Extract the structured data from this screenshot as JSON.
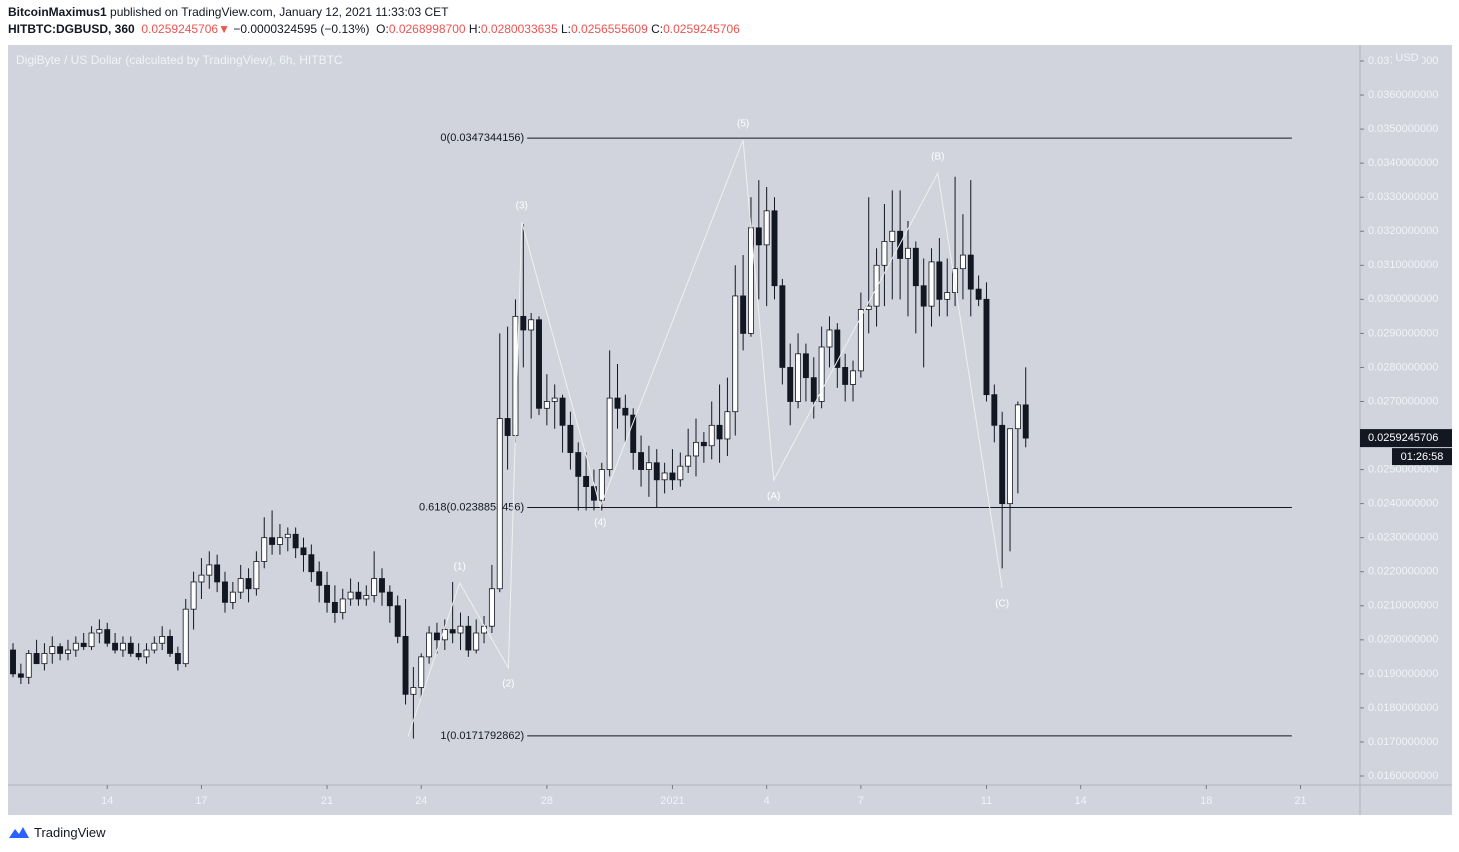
{
  "header": {
    "author": "BitcoinMaximus1",
    "published": " published on TradingView.com, January 12, 2021 11:33:03 CET",
    "symbol": "HITBTC:DGBUSD, 360",
    "last": "0.0259245706",
    "arrow": "▼",
    "change": "−0.0000324595 (−0.13%)",
    "o_label": "O:",
    "o": "0.0268998700",
    "h_label": "H:",
    "h": "0.0280033635",
    "l_label": "L:",
    "l": "0.0256555609",
    "c_label": "C:",
    "c": "0.0259245706"
  },
  "footer": {
    "brand": "TradingView"
  },
  "chart_data": {
    "type": "candlestick",
    "title": "DigiByte / US Dollar (calculated by TradingView), 6h, HITBTC",
    "currency": "USD",
    "countdown": "01:26:58",
    "up_color": "#ffffff",
    "down_color": "#131722",
    "wick_color": "#131722",
    "background": "#d1d4dc",
    "wave_color": "#f0f0f0",
    "fib_color": "#131722",
    "xlim": [
      -0.64,
      171.58
    ],
    "ylim": [
      0.015736,
      0.03747
    ],
    "xticks": [
      {
        "value": 12,
        "label": "14"
      },
      {
        "value": 24,
        "label": "17"
      },
      {
        "value": 40,
        "label": "21"
      },
      {
        "value": 52,
        "label": "24"
      },
      {
        "value": 68,
        "label": "28"
      },
      {
        "value": 84,
        "label": "2021"
      },
      {
        "value": 96,
        "label": "4"
      },
      {
        "value": 108,
        "label": "7"
      },
      {
        "value": 124,
        "label": "11"
      },
      {
        "value": 136,
        "label": "14"
      },
      {
        "value": 152,
        "label": "18"
      },
      {
        "value": 164,
        "label": "21"
      }
    ],
    "yticks": [
      {
        "value": 0.016,
        "label": "0.0160000000"
      },
      {
        "value": 0.017,
        "label": "0.0170000000"
      },
      {
        "value": 0.018,
        "label": "0.0180000000"
      },
      {
        "value": 0.019,
        "label": "0.0190000000"
      },
      {
        "value": 0.02,
        "label": "0.0200000000"
      },
      {
        "value": 0.021,
        "label": "0.0210000000"
      },
      {
        "value": 0.022,
        "label": "0.0220000000"
      },
      {
        "value": 0.023,
        "label": "0.0230000000"
      },
      {
        "value": 0.024,
        "label": "0.0240000000"
      },
      {
        "value": 0.025,
        "label": "0.0250000000"
      },
      {
        "value": 0.026,
        "label": "0.0260000000"
      },
      {
        "value": 0.027,
        "label": "0.0270000000"
      },
      {
        "value": 0.028,
        "label": "0.0280000000"
      },
      {
        "value": 0.029,
        "label": "0.0290000000"
      },
      {
        "value": 0.03,
        "label": "0.0300000000"
      },
      {
        "value": 0.031,
        "label": "0.0310000000"
      },
      {
        "value": 0.032,
        "label": "0.0320000000"
      },
      {
        "value": 0.033,
        "label": "0.0330000000"
      },
      {
        "value": 0.034,
        "label": "0.0340000000"
      },
      {
        "value": 0.035,
        "label": "0.0350000000"
      },
      {
        "value": 0.036,
        "label": "0.0360000000"
      },
      {
        "value": 0.037,
        "label": "0.0370000000"
      }
    ],
    "ohlc": [
      [
        0.0197,
        0.0199,
        0.0189,
        0.019
      ],
      [
        0.019,
        0.0193,
        0.0187,
        0.0189
      ],
      [
        0.0189,
        0.0197,
        0.0187,
        0.0196
      ],
      [
        0.0196,
        0.02,
        0.0193,
        0.0193
      ],
      [
        0.0193,
        0.0199,
        0.0191,
        0.0196
      ],
      [
        0.0196,
        0.0201,
        0.0193,
        0.0198
      ],
      [
        0.0198,
        0.0199,
        0.0194,
        0.0196
      ],
      [
        0.0196,
        0.02,
        0.0194,
        0.0197
      ],
      [
        0.0197,
        0.0201,
        0.0195,
        0.0199
      ],
      [
        0.0199,
        0.0202,
        0.0197,
        0.0198
      ],
      [
        0.0198,
        0.0204,
        0.0197,
        0.0202
      ],
      [
        0.0202,
        0.0206,
        0.0199,
        0.0203
      ],
      [
        0.0203,
        0.0205,
        0.0198,
        0.0199
      ],
      [
        0.0199,
        0.0202,
        0.0196,
        0.0197
      ],
      [
        0.0197,
        0.0201,
        0.0195,
        0.0199
      ],
      [
        0.0199,
        0.0201,
        0.0195,
        0.0196
      ],
      [
        0.0196,
        0.0199,
        0.0194,
        0.0195
      ],
      [
        0.0195,
        0.0199,
        0.0193,
        0.0197
      ],
      [
        0.0197,
        0.0201,
        0.0196,
        0.0199
      ],
      [
        0.0199,
        0.0204,
        0.0197,
        0.0201
      ],
      [
        0.0201,
        0.0203,
        0.0195,
        0.0196
      ],
      [
        0.0196,
        0.0198,
        0.0191,
        0.0193
      ],
      [
        0.0193,
        0.0212,
        0.0192,
        0.0209
      ],
      [
        0.0209,
        0.022,
        0.0203,
        0.0217
      ],
      [
        0.0217,
        0.0224,
        0.0212,
        0.0219
      ],
      [
        0.0219,
        0.0226,
        0.0215,
        0.0222
      ],
      [
        0.0222,
        0.0225,
        0.0214,
        0.0217
      ],
      [
        0.0217,
        0.022,
        0.0208,
        0.0211
      ],
      [
        0.0211,
        0.0217,
        0.0209,
        0.0214
      ],
      [
        0.0214,
        0.0222,
        0.0212,
        0.0218
      ],
      [
        0.0218,
        0.0221,
        0.0211,
        0.0215
      ],
      [
        0.0215,
        0.0226,
        0.0213,
        0.0223
      ],
      [
        0.0223,
        0.0236,
        0.0221,
        0.023
      ],
      [
        0.023,
        0.0238,
        0.0225,
        0.0228
      ],
      [
        0.0228,
        0.0234,
        0.0225,
        0.023
      ],
      [
        0.023,
        0.0233,
        0.0226,
        0.0231
      ],
      [
        0.0231,
        0.0233,
        0.0224,
        0.0227
      ],
      [
        0.0227,
        0.023,
        0.022,
        0.0225
      ],
      [
        0.0225,
        0.0228,
        0.0217,
        0.022
      ],
      [
        0.022,
        0.0223,
        0.0211,
        0.0216
      ],
      [
        0.0216,
        0.022,
        0.0208,
        0.0211
      ],
      [
        0.0211,
        0.0216,
        0.0205,
        0.0208
      ],
      [
        0.0208,
        0.0215,
        0.0206,
        0.0212
      ],
      [
        0.0212,
        0.0218,
        0.021,
        0.0214
      ],
      [
        0.0214,
        0.0217,
        0.021,
        0.0212
      ],
      [
        0.0212,
        0.0216,
        0.021,
        0.0213
      ],
      [
        0.0213,
        0.0226,
        0.0211,
        0.0218
      ],
      [
        0.0218,
        0.0221,
        0.021,
        0.0214
      ],
      [
        0.0214,
        0.0216,
        0.0205,
        0.021
      ],
      [
        0.021,
        0.0213,
        0.0199,
        0.0201
      ],
      [
        0.0201,
        0.0212,
        0.0181,
        0.0184
      ],
      [
        0.0184,
        0.0192,
        0.0171,
        0.0186
      ],
      [
        0.0186,
        0.0196,
        0.0183,
        0.0195
      ],
      [
        0.0195,
        0.0204,
        0.0193,
        0.0202
      ],
      [
        0.0202,
        0.0205,
        0.0196,
        0.02
      ],
      [
        0.02,
        0.0206,
        0.0197,
        0.0203
      ],
      [
        0.0203,
        0.0217,
        0.0199,
        0.0202
      ],
      [
        0.0202,
        0.0208,
        0.0197,
        0.0204
      ],
      [
        0.0204,
        0.0207,
        0.0195,
        0.0197
      ],
      [
        0.0197,
        0.0206,
        0.0196,
        0.0202
      ],
      [
        0.0202,
        0.0207,
        0.0199,
        0.0204
      ],
      [
        0.0204,
        0.0222,
        0.0202,
        0.0215
      ],
      [
        0.0215,
        0.029,
        0.0214,
        0.0265
      ],
      [
        0.0265,
        0.0292,
        0.025,
        0.026
      ],
      [
        0.026,
        0.03,
        0.0258,
        0.0295
      ],
      [
        0.0295,
        0.0322,
        0.028,
        0.0291
      ],
      [
        0.0291,
        0.0296,
        0.0265,
        0.0294
      ],
      [
        0.0294,
        0.0295,
        0.0266,
        0.0268
      ],
      [
        0.0268,
        0.0278,
        0.0263,
        0.027
      ],
      [
        0.027,
        0.0275,
        0.0262,
        0.0271
      ],
      [
        0.0271,
        0.0272,
        0.0255,
        0.0263
      ],
      [
        0.0263,
        0.0267,
        0.025,
        0.0255
      ],
      [
        0.0255,
        0.0258,
        0.0238,
        0.0248
      ],
      [
        0.0248,
        0.0255,
        0.0238,
        0.0245
      ],
      [
        0.0245,
        0.025,
        0.0238,
        0.0241
      ],
      [
        0.0241,
        0.0252,
        0.0238,
        0.025
      ],
      [
        0.025,
        0.0285,
        0.0248,
        0.0271
      ],
      [
        0.0271,
        0.0281,
        0.0262,
        0.0268
      ],
      [
        0.0268,
        0.0272,
        0.0258,
        0.0266
      ],
      [
        0.0266,
        0.0268,
        0.025,
        0.0255
      ],
      [
        0.0255,
        0.026,
        0.0245,
        0.025
      ],
      [
        0.025,
        0.0257,
        0.0242,
        0.0252
      ],
      [
        0.0252,
        0.0256,
        0.0239,
        0.0247
      ],
      [
        0.0247,
        0.0252,
        0.0243,
        0.0249
      ],
      [
        0.0249,
        0.0256,
        0.0244,
        0.0247
      ],
      [
        0.0247,
        0.0255,
        0.0245,
        0.0251
      ],
      [
        0.0251,
        0.0262,
        0.0249,
        0.0254
      ],
      [
        0.0254,
        0.0265,
        0.0248,
        0.0258
      ],
      [
        0.0258,
        0.0261,
        0.0252,
        0.0257
      ],
      [
        0.0257,
        0.027,
        0.0253,
        0.0263
      ],
      [
        0.0263,
        0.0275,
        0.0252,
        0.0259
      ],
      [
        0.0259,
        0.0277,
        0.0254,
        0.0267
      ],
      [
        0.0267,
        0.031,
        0.026,
        0.0301
      ],
      [
        0.0301,
        0.0313,
        0.0285,
        0.029
      ],
      [
        0.029,
        0.033,
        0.0289,
        0.0321
      ],
      [
        0.0321,
        0.0335,
        0.03,
        0.0316
      ],
      [
        0.0316,
        0.0333,
        0.0298,
        0.0326
      ],
      [
        0.0326,
        0.033,
        0.03,
        0.0304
      ],
      [
        0.0304,
        0.0306,
        0.0275,
        0.028
      ],
      [
        0.028,
        0.0287,
        0.0263,
        0.027
      ],
      [
        0.027,
        0.029,
        0.0268,
        0.0284
      ],
      [
        0.0284,
        0.0287,
        0.027,
        0.0277
      ],
      [
        0.0277,
        0.0283,
        0.0265,
        0.027
      ],
      [
        0.027,
        0.0292,
        0.0268,
        0.0286
      ],
      [
        0.0286,
        0.0295,
        0.028,
        0.0291
      ],
      [
        0.0291,
        0.0293,
        0.0274,
        0.028
      ],
      [
        0.028,
        0.0284,
        0.027,
        0.0275
      ],
      [
        0.0275,
        0.0282,
        0.027,
        0.0279
      ],
      [
        0.0279,
        0.0302,
        0.0277,
        0.0297
      ],
      [
        0.0297,
        0.033,
        0.029,
        0.0298
      ],
      [
        0.0298,
        0.0315,
        0.0292,
        0.031
      ],
      [
        0.031,
        0.0328,
        0.0298,
        0.0317
      ],
      [
        0.0317,
        0.0332,
        0.03,
        0.032
      ],
      [
        0.032,
        0.0332,
        0.03,
        0.0312
      ],
      [
        0.0312,
        0.0323,
        0.0295,
        0.0315
      ],
      [
        0.0315,
        0.0317,
        0.029,
        0.0304
      ],
      [
        0.0304,
        0.0312,
        0.028,
        0.0298
      ],
      [
        0.0298,
        0.0315,
        0.0292,
        0.0311
      ],
      [
        0.0311,
        0.0318,
        0.0295,
        0.03
      ],
      [
        0.03,
        0.0312,
        0.0295,
        0.0302
      ],
      [
        0.0302,
        0.0336,
        0.0298,
        0.0309
      ],
      [
        0.0309,
        0.0325,
        0.03,
        0.0313
      ],
      [
        0.0313,
        0.0335,
        0.0295,
        0.0303
      ],
      [
        0.0303,
        0.0307,
        0.0298,
        0.03
      ],
      [
        0.03,
        0.0305,
        0.027,
        0.0272
      ],
      [
        0.0272,
        0.0275,
        0.0258,
        0.0263
      ],
      [
        0.0263,
        0.0267,
        0.0221,
        0.024
      ],
      [
        0.024,
        0.0262,
        0.0226,
        0.0262
      ],
      [
        0.0262,
        0.027,
        0.0243,
        0.0269
      ],
      [
        0.02689987,
        0.0280033635,
        0.0256555609,
        0.0259245706
      ]
    ],
    "fib_range": [
      65.5,
      162.9
    ],
    "fib_levels": [
      {
        "label": "0(0.0347344156)",
        "value": 0.0347344156
      },
      {
        "label": "0.618(0.0238853456)",
        "value": 0.0238853456
      },
      {
        "label": "1(0.0171792862)",
        "value": 0.0171792862
      }
    ],
    "waves": [
      {
        "label": null,
        "x": 50.3,
        "y": 0.01715
      },
      {
        "label": "(1)",
        "x": 56.9,
        "y": 0.02167
      },
      {
        "label": "(2)",
        "x": 63.1,
        "y": 0.01917
      },
      {
        "label": "(3)",
        "x": 64.8,
        "y": 0.03227
      },
      {
        "label": "(4)",
        "x": 74.8,
        "y": 0.0239
      },
      {
        "label": "(5)",
        "x": 93.0,
        "y": 0.03468
      },
      {
        "label": "(A)",
        "x": 96.9,
        "y": 0.02469
      },
      {
        "label": "(B)",
        "x": 117.8,
        "y": 0.03371
      },
      {
        "label": "(C)",
        "x": 126.0,
        "y": 0.02152
      }
    ]
  }
}
